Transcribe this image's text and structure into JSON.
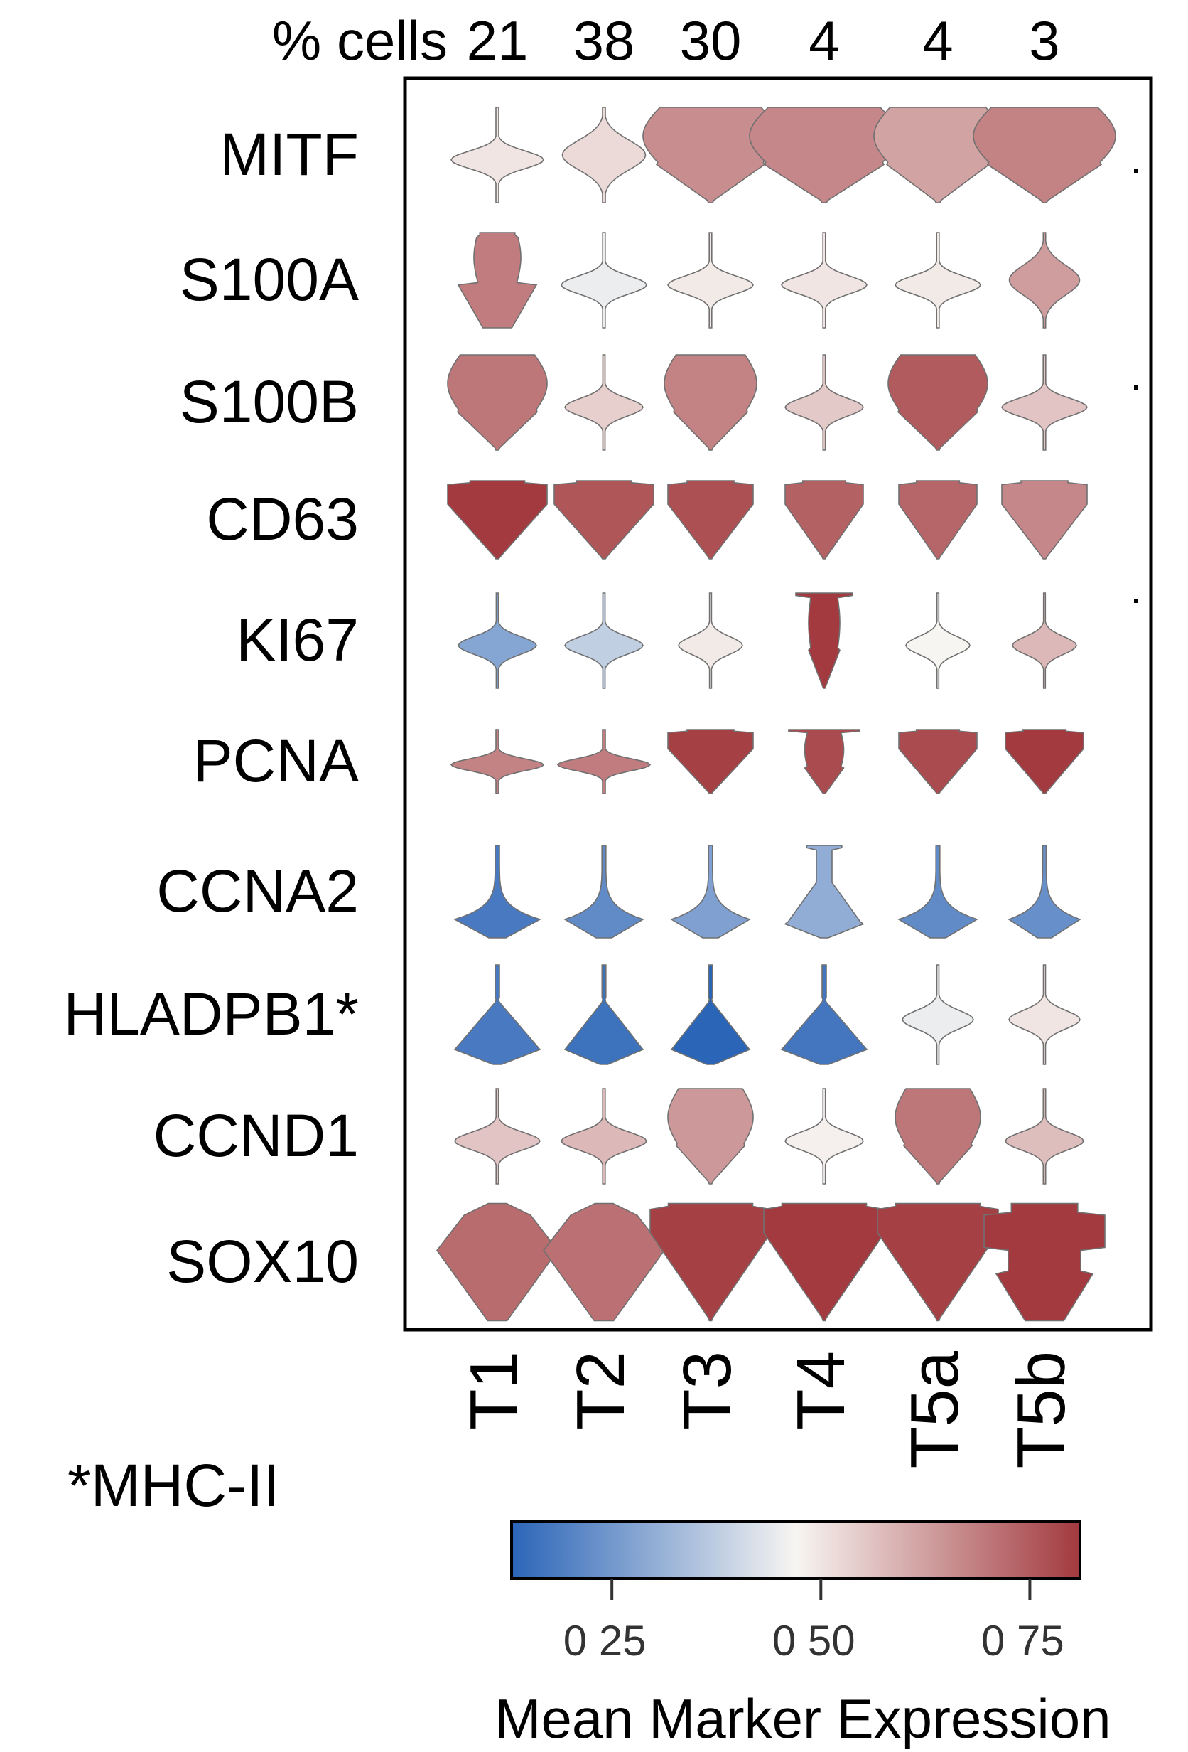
{
  "chart_data": {
    "type": "violin",
    "title": "",
    "header_label": "% cells",
    "groups": [
      "T1",
      "T2",
      "T3",
      "T4",
      "T5a",
      "T5b"
    ],
    "percent_cells": [
      21,
      38,
      30,
      4,
      4,
      3
    ],
    "markers": [
      "MITF",
      "S100A",
      "S100B",
      "CD63",
      "KI67",
      "PCNA",
      "CCNA2",
      "HLADPB1*",
      "CCND1",
      "SOX10"
    ],
    "mean_expression": [
      [
        0.5,
        0.52,
        0.66,
        0.67,
        0.62,
        0.68
      ],
      [
        0.69,
        0.45,
        0.49,
        0.5,
        0.49,
        0.63
      ],
      [
        0.7,
        0.54,
        0.68,
        0.55,
        0.75,
        0.56
      ],
      [
        0.82,
        0.76,
        0.77,
        0.74,
        0.73,
        0.67
      ],
      [
        0.28,
        0.38,
        0.49,
        0.82,
        0.47,
        0.58
      ],
      [
        0.68,
        0.69,
        0.8,
        0.78,
        0.78,
        0.81
      ],
      [
        0.18,
        0.22,
        0.27,
        0.3,
        0.22,
        0.23
      ],
      [
        0.18,
        0.16,
        0.1,
        0.17,
        0.45,
        0.5
      ],
      [
        0.56,
        0.58,
        0.64,
        0.48,
        0.7,
        0.57
      ],
      [
        0.72,
        0.71,
        0.8,
        0.82,
        0.8,
        0.82
      ]
    ],
    "colorbar": {
      "label": "Mean Marker Expression",
      "range": [
        0.13,
        0.81
      ],
      "ticks": [
        0.25,
        0.5,
        0.75
      ],
      "tick_labels": [
        "0 25",
        "0 50",
        "0 75"
      ],
      "colors": [
        "#2b65b8",
        "#f7f5f2",
        "#a23a3f"
      ]
    },
    "footnote": "*MHC-II",
    "grid": false,
    "legend": "colorbar bottom-right"
  }
}
